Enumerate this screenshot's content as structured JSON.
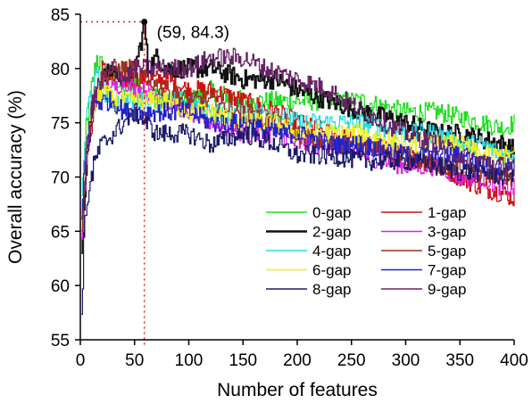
{
  "chart_data": {
    "type": "line",
    "title": "",
    "xlabel": "Number of features",
    "ylabel": "Overall accuracy (%)",
    "xlim": [
      0,
      400
    ],
    "ylim": [
      55,
      85
    ],
    "x_ticks": [
      0,
      50,
      100,
      150,
      200,
      250,
      300,
      350,
      400
    ],
    "y_ticks": [
      55,
      60,
      65,
      70,
      75,
      80,
      85
    ],
    "grid": false,
    "legend_position": "lower-right, two columns",
    "annotation": {
      "text": "(59, 84.3)",
      "x": 59,
      "y": 84.3
    },
    "series": [
      {
        "name": "0-gap",
        "color": "#22dd22",
        "points": [
          [
            1,
            66
          ],
          [
            3,
            70
          ],
          [
            6,
            75
          ],
          [
            10,
            78
          ],
          [
            15,
            81
          ],
          [
            20,
            80
          ],
          [
            30,
            79
          ],
          [
            40,
            78
          ],
          [
            50,
            79
          ],
          [
            60,
            78
          ],
          [
            80,
            77
          ],
          [
            100,
            77
          ],
          [
            120,
            78
          ],
          [
            150,
            77
          ],
          [
            180,
            77
          ],
          [
            200,
            77
          ],
          [
            230,
            77
          ],
          [
            260,
            77
          ],
          [
            300,
            76
          ],
          [
            330,
            76
          ],
          [
            350,
            75.5
          ],
          [
            370,
            75
          ],
          [
            390,
            74.5
          ],
          [
            400,
            75
          ]
        ]
      },
      {
        "name": "1-gap",
        "color": "#cc1111",
        "points": [
          [
            1,
            64
          ],
          [
            3,
            68
          ],
          [
            6,
            72
          ],
          [
            10,
            75
          ],
          [
            15,
            77
          ],
          [
            20,
            80
          ],
          [
            30,
            79
          ],
          [
            40,
            79
          ],
          [
            50,
            79
          ],
          [
            60,
            79
          ],
          [
            80,
            79
          ],
          [
            100,
            78
          ],
          [
            120,
            78
          ],
          [
            150,
            77
          ],
          [
            180,
            76
          ],
          [
            200,
            75
          ],
          [
            230,
            74
          ],
          [
            260,
            73
          ],
          [
            300,
            72
          ],
          [
            330,
            71
          ],
          [
            350,
            70
          ],
          [
            370,
            69
          ],
          [
            390,
            68.5
          ],
          [
            400,
            68
          ]
        ]
      },
      {
        "name": "2-gap",
        "color": "#111111",
        "points": [
          [
            1,
            62
          ],
          [
            3,
            68
          ],
          [
            6,
            72
          ],
          [
            10,
            76
          ],
          [
            15,
            78
          ],
          [
            20,
            79
          ],
          [
            30,
            80
          ],
          [
            40,
            79
          ],
          [
            50,
            80
          ],
          [
            55,
            82
          ],
          [
            59,
            84.3
          ],
          [
            62,
            80
          ],
          [
            70,
            81
          ],
          [
            80,
            80
          ],
          [
            100,
            80
          ],
          [
            120,
            80
          ],
          [
            150,
            79
          ],
          [
            180,
            79
          ],
          [
            200,
            78
          ],
          [
            230,
            77
          ],
          [
            260,
            76
          ],
          [
            300,
            75
          ],
          [
            330,
            74
          ],
          [
            350,
            74
          ],
          [
            370,
            73.5
          ],
          [
            390,
            73
          ],
          [
            400,
            72.5
          ]
        ]
      },
      {
        "name": "3-gap",
        "color": "#dd22dd",
        "points": [
          [
            1,
            64
          ],
          [
            3,
            68
          ],
          [
            6,
            72
          ],
          [
            10,
            76
          ],
          [
            15,
            78
          ],
          [
            20,
            79
          ],
          [
            30,
            78
          ],
          [
            40,
            79
          ],
          [
            50,
            78
          ],
          [
            60,
            78
          ],
          [
            80,
            77
          ],
          [
            100,
            76
          ],
          [
            120,
            75
          ],
          [
            150,
            74
          ],
          [
            180,
            74
          ],
          [
            200,
            73
          ],
          [
            230,
            73
          ],
          [
            260,
            72
          ],
          [
            300,
            71
          ],
          [
            330,
            71
          ],
          [
            350,
            70
          ],
          [
            370,
            70
          ],
          [
            390,
            69
          ],
          [
            400,
            69
          ]
        ]
      },
      {
        "name": "4-gap",
        "color": "#22dddd",
        "points": [
          [
            1,
            68
          ],
          [
            3,
            72
          ],
          [
            6,
            76
          ],
          [
            10,
            78
          ],
          [
            15,
            79
          ],
          [
            20,
            78
          ],
          [
            30,
            77
          ],
          [
            40,
            77
          ],
          [
            50,
            77
          ],
          [
            60,
            77
          ],
          [
            80,
            77
          ],
          [
            100,
            77
          ],
          [
            120,
            76
          ],
          [
            150,
            76
          ],
          [
            180,
            76
          ],
          [
            200,
            75
          ],
          [
            230,
            75
          ],
          [
            260,
            75
          ],
          [
            300,
            74
          ],
          [
            330,
            74
          ],
          [
            350,
            73
          ],
          [
            370,
            73
          ],
          [
            390,
            72
          ],
          [
            400,
            72
          ]
        ]
      },
      {
        "name": "5-gap",
        "color": "#993322",
        "points": [
          [
            1,
            65
          ],
          [
            3,
            69
          ],
          [
            6,
            73
          ],
          [
            10,
            76
          ],
          [
            15,
            78
          ],
          [
            20,
            79
          ],
          [
            30,
            80
          ],
          [
            40,
            80
          ],
          [
            50,
            80
          ],
          [
            60,
            79
          ],
          [
            80,
            78
          ],
          [
            100,
            77
          ],
          [
            120,
            77
          ],
          [
            150,
            76
          ],
          [
            180,
            75
          ],
          [
            200,
            74
          ],
          [
            230,
            73
          ],
          [
            260,
            73
          ],
          [
            300,
            72
          ],
          [
            330,
            71
          ],
          [
            350,
            71
          ],
          [
            370,
            70
          ],
          [
            390,
            70
          ],
          [
            400,
            70
          ]
        ]
      },
      {
        "name": "6-gap",
        "color": "#eeee22",
        "points": [
          [
            1,
            66
          ],
          [
            3,
            70
          ],
          [
            6,
            74
          ],
          [
            10,
            76
          ],
          [
            15,
            77
          ],
          [
            20,
            78
          ],
          [
            30,
            77
          ],
          [
            40,
            77
          ],
          [
            50,
            77
          ],
          [
            60,
            77
          ],
          [
            80,
            77
          ],
          [
            100,
            76
          ],
          [
            120,
            76
          ],
          [
            150,
            75
          ],
          [
            180,
            75
          ],
          [
            200,
            74
          ],
          [
            230,
            74
          ],
          [
            260,
            74
          ],
          [
            300,
            73
          ],
          [
            330,
            73
          ],
          [
            350,
            73
          ],
          [
            370,
            72
          ],
          [
            390,
            72
          ],
          [
            400,
            72
          ]
        ]
      },
      {
        "name": "7-gap",
        "color": "#2222cc",
        "points": [
          [
            1,
            66
          ],
          [
            3,
            70
          ],
          [
            6,
            73
          ],
          [
            10,
            76
          ],
          [
            15,
            77
          ],
          [
            20,
            77
          ],
          [
            30,
            77
          ],
          [
            40,
            76
          ],
          [
            50,
            76
          ],
          [
            60,
            76
          ],
          [
            80,
            76
          ],
          [
            100,
            76
          ],
          [
            120,
            75
          ],
          [
            150,
            75
          ],
          [
            180,
            74
          ],
          [
            200,
            74
          ],
          [
            230,
            73
          ],
          [
            260,
            73
          ],
          [
            300,
            72
          ],
          [
            330,
            72
          ],
          [
            350,
            72
          ],
          [
            370,
            71
          ],
          [
            390,
            71
          ],
          [
            400,
            71
          ]
        ]
      },
      {
        "name": "8-gap",
        "color": "#1a1a66",
        "points": [
          [
            1,
            57.6
          ],
          [
            3,
            64
          ],
          [
            6,
            68
          ],
          [
            10,
            70
          ],
          [
            15,
            72
          ],
          [
            20,
            73
          ],
          [
            30,
            74
          ],
          [
            40,
            75
          ],
          [
            50,
            76
          ],
          [
            60,
            75
          ],
          [
            70,
            74
          ],
          [
            80,
            74
          ],
          [
            100,
            74
          ],
          [
            120,
            73
          ],
          [
            150,
            74
          ],
          [
            180,
            73
          ],
          [
            200,
            72
          ],
          [
            230,
            72
          ],
          [
            260,
            71.5
          ],
          [
            300,
            71.5
          ],
          [
            330,
            71
          ],
          [
            350,
            70.5
          ],
          [
            370,
            70.5
          ],
          [
            390,
            70
          ],
          [
            400,
            70.5
          ]
        ]
      },
      {
        "name": "9-gap",
        "color": "#662266",
        "points": [
          [
            1,
            65
          ],
          [
            3,
            69
          ],
          [
            6,
            73
          ],
          [
            10,
            76
          ],
          [
            15,
            78
          ],
          [
            20,
            79
          ],
          [
            30,
            80
          ],
          [
            40,
            79
          ],
          [
            50,
            80
          ],
          [
            60,
            80
          ],
          [
            80,
            80
          ],
          [
            100,
            80
          ],
          [
            120,
            81
          ],
          [
            150,
            81
          ],
          [
            170,
            80
          ],
          [
            200,
            79
          ],
          [
            230,
            78
          ],
          [
            260,
            76
          ],
          [
            300,
            74
          ],
          [
            330,
            73
          ],
          [
            350,
            72
          ],
          [
            370,
            71.5
          ],
          [
            390,
            71
          ],
          [
            400,
            71
          ]
        ]
      }
    ]
  }
}
